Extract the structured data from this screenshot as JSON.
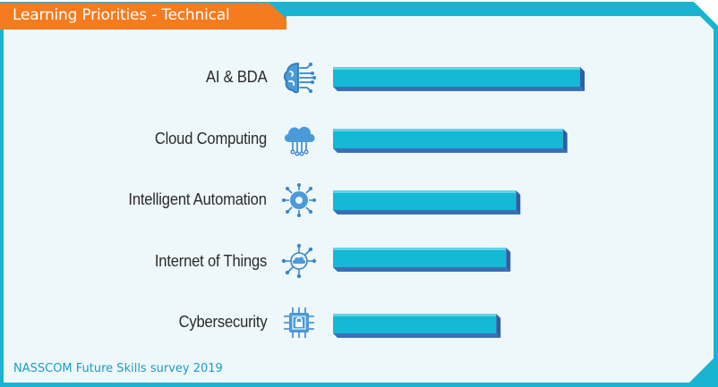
{
  "title": "Learning Priorities - Technical",
  "source": "NASSCOM Future Skills survey 2019",
  "colors": {
    "accent_orange": "#f47b20",
    "frame_teal": "#1ab4d0",
    "bar_top": "#15b9d6",
    "bar_side": "#3a6fb8",
    "background": "#eef8fb"
  },
  "chart_data": {
    "type": "bar",
    "orientation": "horizontal",
    "categories": [
      "AI & BDA",
      "Cloud Computing",
      "Intelligent Automation",
      "Internet of Things",
      "Cybersecurity"
    ],
    "icons": [
      "brain-circuit-icon",
      "cloud-network-icon",
      "gear-network-icon",
      "iot-cloud-network-icon",
      "chip-lock-icon"
    ],
    "values": [
      100,
      93,
      74,
      70,
      66
    ],
    "xlim": [
      0,
      100
    ],
    "title": "Learning Priorities - Technical",
    "xlabel": "",
    "ylabel": "",
    "grid": false,
    "legend": "none"
  }
}
